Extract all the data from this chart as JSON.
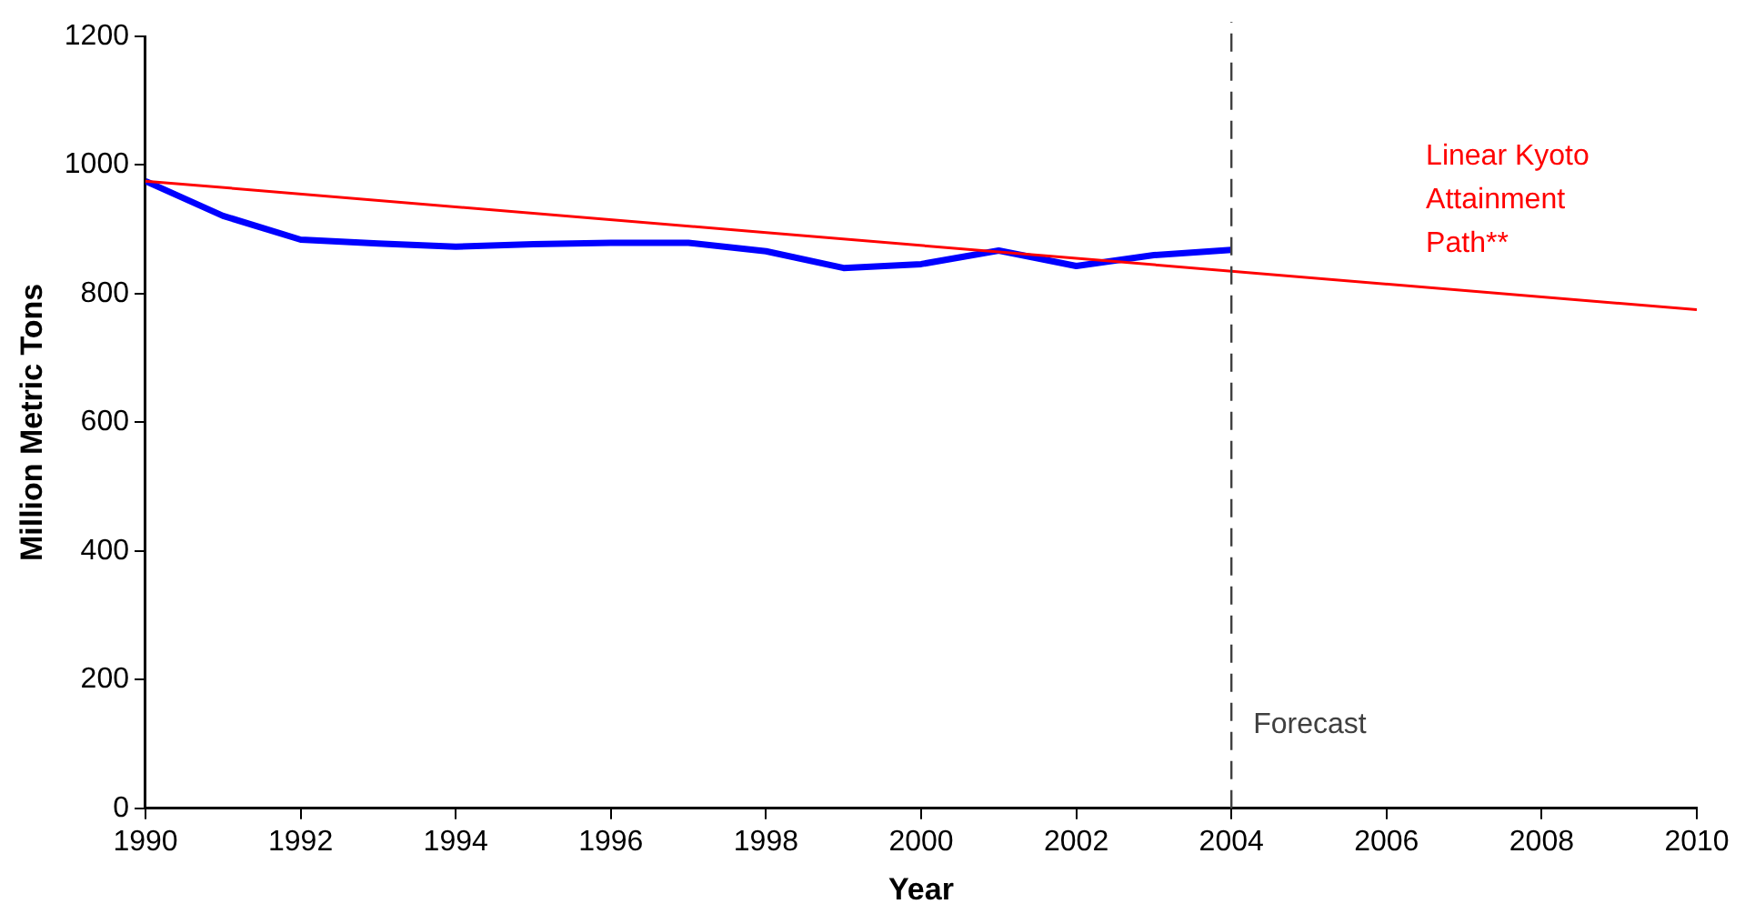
{
  "chart_data": {
    "type": "line",
    "xlabel": "Year",
    "ylabel": "Million Metric Tons",
    "xlim": [
      1990,
      2010
    ],
    "xticks": [
      1990,
      1992,
      1994,
      1996,
      1998,
      2000,
      2002,
      2004,
      2006,
      2008,
      2010
    ],
    "ylim": [
      0,
      1200
    ],
    "yticks": [
      0,
      200,
      400,
      600,
      800,
      1000,
      1200
    ],
    "grid": false,
    "legend": false,
    "marker": "none",
    "series": [
      {
        "color": "#0000ff",
        "x": [
          1990,
          1991,
          1992,
          1993,
          1994,
          1995,
          1996,
          1997,
          1998,
          1999,
          2000,
          2001,
          2002,
          2003,
          2004
        ],
        "values": [
          975,
          921,
          884,
          878,
          873,
          877,
          879,
          879,
          866,
          840,
          846,
          867,
          843,
          860,
          868
        ]
      },
      {
        "name": "Linear Kyoto Attainment Path**",
        "color": "#ff0000",
        "x": [
          1990,
          2010
        ],
        "values": [
          975,
          775
        ]
      }
    ],
    "ref_lines": [
      {
        "axis": "x",
        "value": 2004,
        "label": "Forecast",
        "color": "#404040",
        "line_style": "dashed"
      }
    ]
  }
}
